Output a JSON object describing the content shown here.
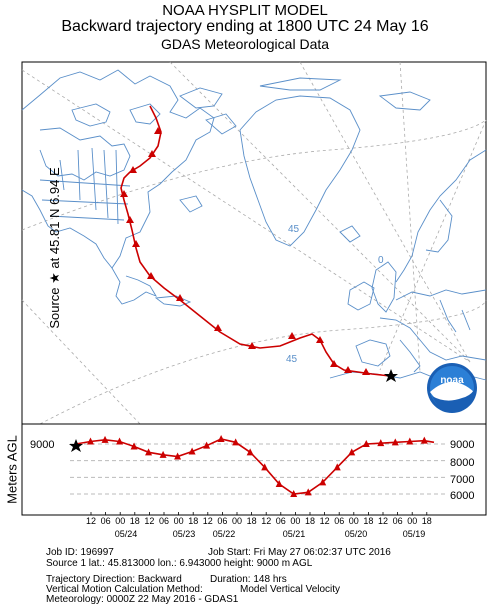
{
  "title": {
    "line1": "NOAA HYSPLIT MODEL",
    "line2": "Backward trajectory ending at 1800 UTC 24 May 16",
    "line3": "GDAS Meteorological Data"
  },
  "side_label": {
    "source": "Source",
    "at": "at",
    "lat": "45.81 N",
    "lon": "6.94 E"
  },
  "map": {
    "grid_labels": [
      "45",
      "0",
      "45"
    ],
    "trajectory_color": "#cc0000",
    "land_outline_color": "#5a8fc9",
    "logo_text": "noaa"
  },
  "vertical": {
    "ylabel": "Meters AGL",
    "left_tick": "9000",
    "right_ticks": [
      "9000",
      "8000",
      "7000",
      "6000"
    ],
    "hour_labels": [
      "12",
      "06",
      "00",
      "18",
      "12",
      "06",
      "00",
      "18",
      "12",
      "06",
      "00",
      "18",
      "12",
      "06",
      "00",
      "18",
      "12",
      "06",
      "00",
      "18",
      "12",
      "06",
      "00",
      "18"
    ],
    "date_labels": [
      "05/24",
      "05/23",
      "05/22",
      "05/21",
      "05/20",
      "05/19"
    ]
  },
  "info": {
    "job_id": "Job ID: 196997",
    "job_start": "Job Start: Fri May 27 06:02:37 UTC 2016",
    "source": "Source 1     lat.: 45.813000     lon.: 6.943000     height: 9000 m AGL",
    "direction": "Trajectory Direction: Backward",
    "duration": "Duration: 148 hrs",
    "vmethod": "Vertical Motion Calculation Method:",
    "vmethod_value": "Model Vertical Velocity",
    "meteorology": "Meteorology: 0000Z 22 May 2016 - GDAS1"
  },
  "chart_data": {
    "type": "line",
    "title": "Backward trajectory ending at 1800 UTC 24 May 16",
    "ylabel": "Meters AGL",
    "ylim": [
      5500,
      9600
    ],
    "x_hours_before_end": [
      0,
      6,
      12,
      18,
      24,
      30,
      36,
      42,
      48,
      54,
      60,
      66,
      72,
      78,
      84,
      90,
      96,
      102,
      108,
      114,
      120,
      126,
      132,
      138,
      144,
      148
    ],
    "series": [
      {
        "values": [
          9000,
          9150,
          9250,
          9150,
          8850,
          8500,
          8350,
          8250,
          8550,
          8900,
          9300,
          9100,
          8500,
          7600,
          6600,
          6000,
          6100,
          6700,
          7600,
          8500,
          9000,
          9050,
          9100,
          9150,
          9200,
          9100
        ]
      }
    ]
  }
}
